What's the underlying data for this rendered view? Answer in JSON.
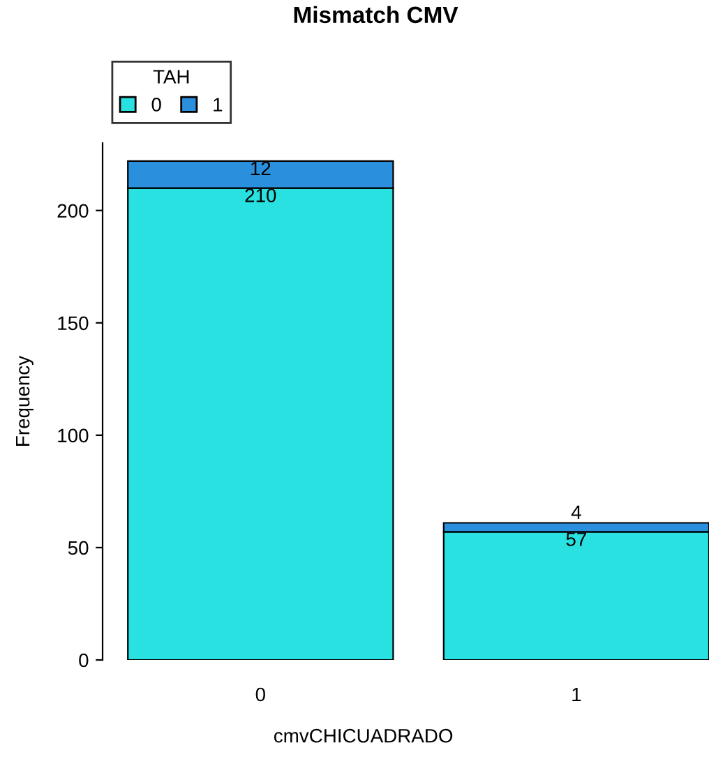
{
  "chart_data": {
    "type": "bar",
    "title": "Mismatch CMV",
    "xlabel": "cmvCHICUADRADO",
    "ylabel": "Frequency",
    "legend_title": "TAH",
    "categories": [
      "0",
      "1"
    ],
    "stacked": true,
    "data_labels": true,
    "legend": "top left",
    "grid": false,
    "series": [
      {
        "name": "0",
        "color": "#29e1e1",
        "values": [
          210,
          57
        ]
      },
      {
        "name": "1",
        "color": "#2a8fdc",
        "values": [
          12,
          4
        ]
      }
    ],
    "ylim": [
      0,
      230
    ],
    "yticks": [
      0,
      50,
      100,
      150,
      200
    ]
  }
}
